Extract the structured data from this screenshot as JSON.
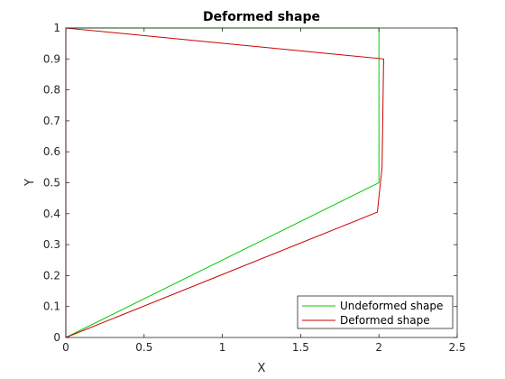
{
  "chart_data": {
    "type": "line",
    "title": "Deformed shape",
    "xlabel": "X",
    "ylabel": "Y",
    "xlim": [
      0,
      2.5
    ],
    "ylim": [
      0,
      1
    ],
    "xticks": [
      0,
      0.5,
      1,
      1.5,
      2,
      2.5
    ],
    "yticks": [
      0,
      0.1,
      0.2,
      0.3,
      0.4,
      0.5,
      0.6,
      0.7,
      0.8,
      0.9,
      1
    ],
    "xtick_labels": [
      "0",
      "0.5",
      "1",
      "1.5",
      "2",
      "2.5"
    ],
    "ytick_labels": [
      "0",
      "0.1",
      "0.2",
      "0.3",
      "0.4",
      "0.5",
      "0.6",
      "0.7",
      "0.8",
      "0.9",
      "1"
    ],
    "grid": false,
    "legend_position": "bottom-right",
    "series": [
      {
        "name": "Undeformed shape",
        "color": "#00cc00",
        "x": [
          0,
          2,
          2,
          0,
          0
        ],
        "y": [
          0,
          0.5,
          1,
          1,
          0
        ]
      },
      {
        "name": "Deformed shape",
        "color": "#cc0000",
        "x": [
          0,
          1.99,
          2.02,
          2.03,
          0,
          0
        ],
        "y": [
          0,
          0.405,
          0.55,
          0.9,
          1,
          0
        ]
      }
    ]
  }
}
